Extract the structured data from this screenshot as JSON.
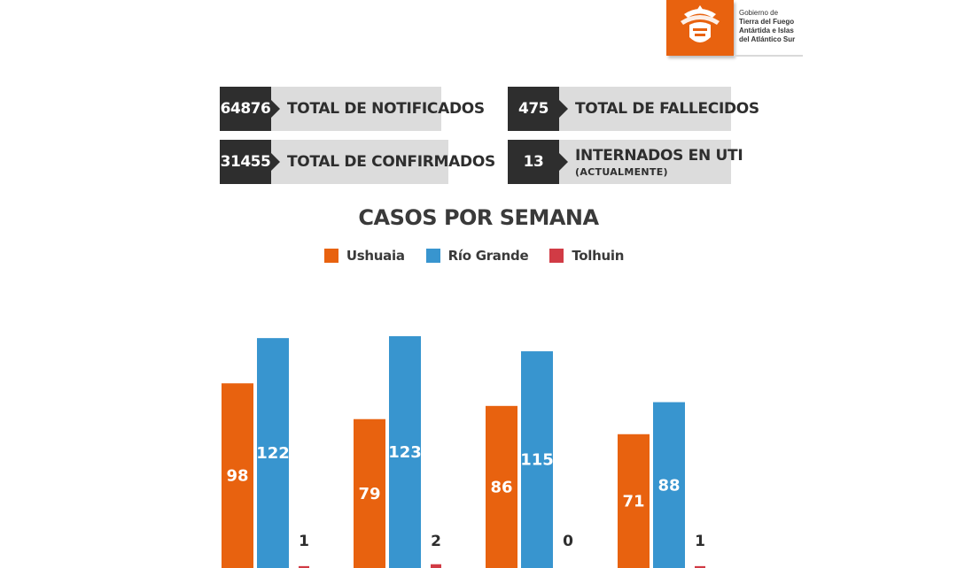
{
  "logo": {
    "line1": "Gobierno de",
    "line2": "Tierra del Fuego",
    "line3": "Antártida e Islas",
    "line4": "del Atlántico Sur",
    "color": "#e8620f"
  },
  "stats": [
    {
      "value": "64876",
      "label": "TOTAL DE NOTIFICADOS",
      "sub": ""
    },
    {
      "value": "31455",
      "label": "TOTAL DE CONFIRMADOS",
      "sub": ""
    },
    {
      "value": "475",
      "label": "TOTAL DE FALLECIDOS",
      "sub": ""
    },
    {
      "value": "13",
      "label": "INTERNADOS EN UTI",
      "sub": "(ACTUALMENTE)"
    }
  ],
  "chart_data": {
    "type": "bar",
    "title": "CASOS POR SEMANA",
    "categories": [
      "",
      "",
      "",
      ""
    ],
    "series": [
      {
        "name": "Ushuaia",
        "color": "#e8620f",
        "values": [
          98,
          79,
          86,
          71
        ]
      },
      {
        "name": "Río Grande",
        "color": "#3895cf",
        "values": [
          122,
          123,
          115,
          88
        ]
      },
      {
        "name": "Tolhuin",
        "color": "#d13b45",
        "values": [
          1,
          2,
          0,
          1
        ]
      }
    ],
    "legend_position": "top-center",
    "grid": false,
    "ylim": [
      0,
      145
    ]
  }
}
